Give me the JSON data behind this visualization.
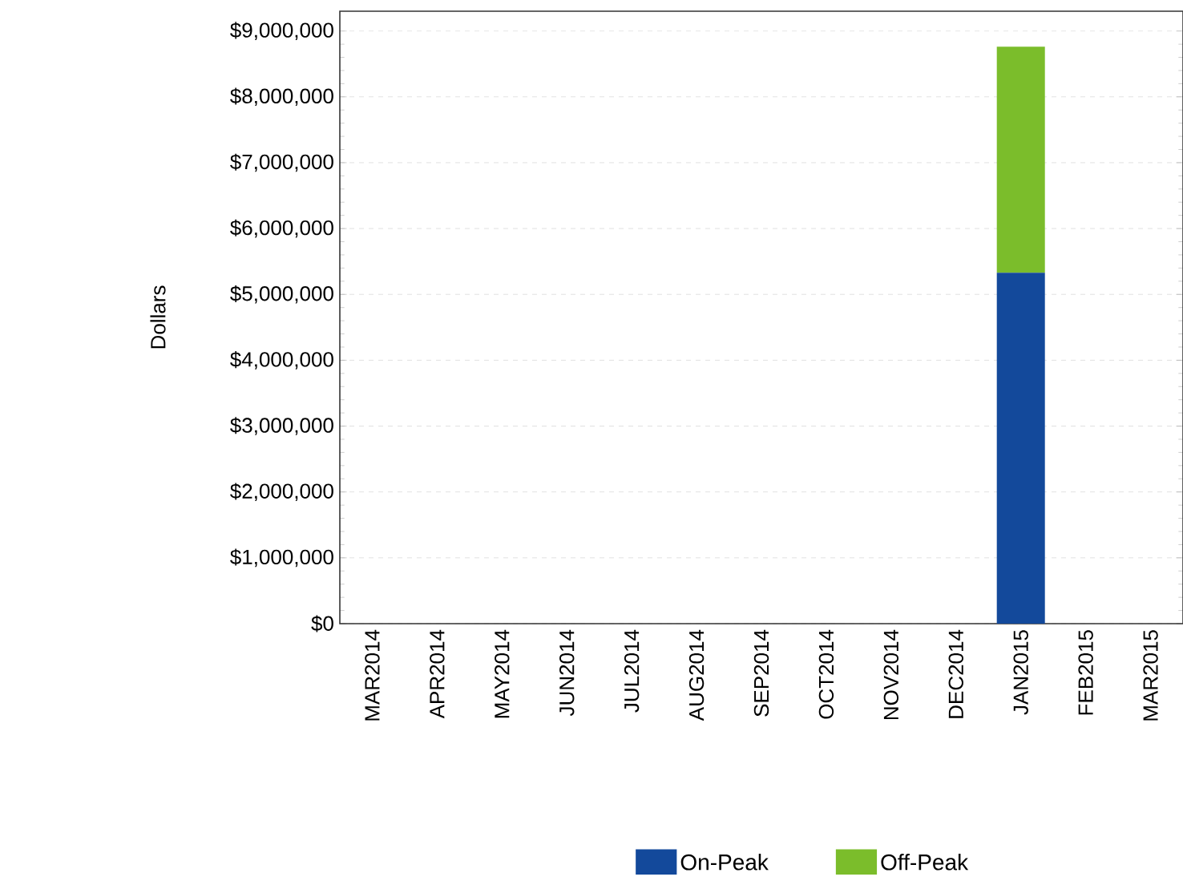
{
  "chart_data": {
    "type": "bar",
    "stacked": true,
    "ylabel": "Dollars",
    "categories": [
      "MAR2014",
      "APR2014",
      "MAY2014",
      "JUN2014",
      "JUL2014",
      "AUG2014",
      "SEP2014",
      "OCT2014",
      "NOV2014",
      "DEC2014",
      "JAN2015",
      "FEB2015",
      "MAR2015"
    ],
    "series": [
      {
        "name": "On-Peak",
        "color": "#13499b",
        "values": [
          null,
          null,
          null,
          null,
          null,
          null,
          null,
          null,
          null,
          null,
          5330000,
          null,
          null
        ]
      },
      {
        "name": "Off-Peak",
        "color": "#7bbd2b",
        "values": [
          null,
          null,
          null,
          null,
          null,
          null,
          null,
          null,
          null,
          null,
          3430000,
          null,
          null
        ]
      }
    ],
    "ylim": [
      0,
      9300000
    ],
    "yticks": [
      {
        "value": 0,
        "label": "$0"
      },
      {
        "value": 1000000,
        "label": "$1,000,000"
      },
      {
        "value": 2000000,
        "label": "$2,000,000"
      },
      {
        "value": 3000000,
        "label": "$3,000,000"
      },
      {
        "value": 4000000,
        "label": "$4,000,000"
      },
      {
        "value": 5000000,
        "label": "$5,000,000"
      },
      {
        "value": 6000000,
        "label": "$6,000,000"
      },
      {
        "value": 7000000,
        "label": "$7,000,000"
      },
      {
        "value": 8000000,
        "label": "$8,000,000"
      },
      {
        "value": 9000000,
        "label": "$9,000,000"
      }
    ],
    "grid": "y",
    "legend": "bottom"
  }
}
